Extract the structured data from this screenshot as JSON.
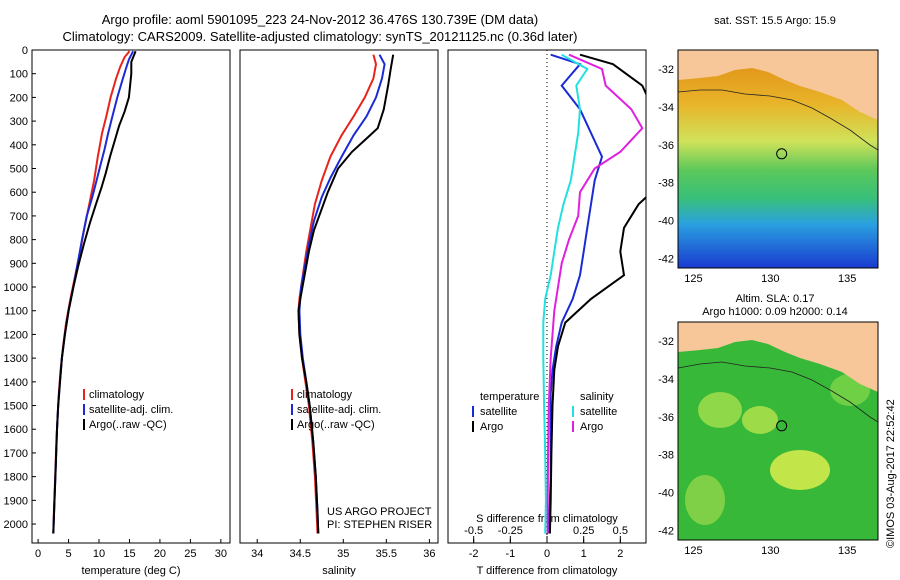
{
  "header": {
    "title_line1": "Argo profile: aoml 5901095_223 24-Nov-2012 36.476S 130.739E (DM data)",
    "title_line2": "Climatology: CARS2009. Satellite-adjusted climatology: synTS_20121125.nc (0.36d later)"
  },
  "footer": {
    "credit_line1": "US ARGO PROJECT",
    "credit_line2": "PI: STEPHEN RISER",
    "timestamp": "©IMOS 03-Aug-2017 22:52:42"
  },
  "colors": {
    "climatology": "#e8241a",
    "satellite": "#1a2bd6",
    "argo": "#000000",
    "satellite_salinity": "#22e0e0",
    "argo_salinity": "#e020e0",
    "land": "#f7c79a"
  },
  "chart_data": [
    {
      "type": "line",
      "name": "temperature-profile",
      "xlabel": "temperature (deg C)",
      "ylabel": "",
      "xlim": [
        -1,
        31.5
      ],
      "ylim": [
        2080,
        0
      ],
      "y_reversed": true,
      "xticks": [
        0,
        5,
        10,
        15,
        20,
        25,
        30
      ],
      "yticks": [
        0,
        100,
        200,
        300,
        400,
        500,
        600,
        700,
        800,
        900,
        1000,
        1100,
        1200,
        1300,
        1400,
        1500,
        1600,
        1700,
        1800,
        1900,
        2000
      ],
      "legend": {
        "position": "lower-middle",
        "entries": [
          "climatology",
          "satellite-adj. clim.",
          "Argo(..raw -QC)"
        ]
      },
      "series": [
        {
          "name": "climatology",
          "color_key": "climatology",
          "points": [
            [
              15.0,
              5
            ],
            [
              14.2,
              30
            ],
            [
              13.5,
              70
            ],
            [
              12.8,
              120
            ],
            [
              11.9,
              200
            ],
            [
              11.2,
              280
            ],
            [
              10.5,
              350
            ],
            [
              9.8,
              450
            ],
            [
              9.2,
              550
            ],
            [
              8.4,
              650
            ],
            [
              7.6,
              750
            ],
            [
              6.9,
              850
            ],
            [
              6.1,
              950
            ],
            [
              5.3,
              1050
            ],
            [
              4.6,
              1150
            ],
            [
              4.1,
              1250
            ],
            [
              3.7,
              1350
            ],
            [
              3.4,
              1450
            ],
            [
              3.2,
              1550
            ],
            [
              3.0,
              1650
            ],
            [
              2.8,
              1800
            ],
            [
              2.6,
              1950
            ],
            [
              2.5,
              2040
            ]
          ]
        },
        {
          "name": "satellite-adj. clim.",
          "color_key": "satellite",
          "points": [
            [
              15.6,
              5
            ],
            [
              14.9,
              40
            ],
            [
              14.4,
              80
            ],
            [
              13.8,
              130
            ],
            [
              13.0,
              200
            ],
            [
              12.2,
              280
            ],
            [
              11.5,
              350
            ],
            [
              10.9,
              420
            ],
            [
              10.3,
              480
            ],
            [
              9.6,
              550
            ],
            [
              8.9,
              620
            ],
            [
              8.0,
              700
            ],
            [
              7.2,
              800
            ],
            [
              6.5,
              900
            ],
            [
              5.8,
              1000
            ],
            [
              5.0,
              1100
            ],
            [
              4.4,
              1200
            ],
            [
              3.9,
              1300
            ],
            [
              3.6,
              1400
            ],
            [
              3.3,
              1500
            ],
            [
              3.1,
              1600
            ],
            [
              2.9,
              1750
            ],
            [
              2.7,
              1900
            ],
            [
              2.5,
              2040
            ]
          ]
        },
        {
          "name": "Argo(..raw -QC)",
          "color_key": "argo",
          "points": [
            [
              16.0,
              5
            ],
            [
              15.3,
              50
            ],
            [
              15.3,
              100
            ],
            [
              14.9,
              200
            ],
            [
              14.2,
              260
            ],
            [
              13.3,
              320
            ],
            [
              12.6,
              380
            ],
            [
              11.8,
              450
            ],
            [
              11.1,
              520
            ],
            [
              10.4,
              580
            ],
            [
              9.5,
              650
            ],
            [
              8.5,
              730
            ],
            [
              7.5,
              820
            ],
            [
              6.6,
              910
            ],
            [
              5.8,
              1000
            ],
            [
              5.0,
              1100
            ],
            [
              4.4,
              1200
            ],
            [
              3.9,
              1300
            ],
            [
              3.6,
              1400
            ],
            [
              3.3,
              1500
            ],
            [
              3.1,
              1600
            ],
            [
              2.9,
              1750
            ],
            [
              2.7,
              1900
            ],
            [
              2.5,
              2040
            ]
          ]
        }
      ]
    },
    {
      "type": "line",
      "name": "salinity-profile",
      "xlabel": "salinity",
      "ylabel": "",
      "xlim": [
        33.8,
        36.1
      ],
      "ylim": [
        2080,
        0
      ],
      "y_reversed": true,
      "xticks": [
        34,
        34.5,
        35,
        35.5,
        36
      ],
      "legend": {
        "position": "lower-middle",
        "entries": [
          "climatology",
          "satellite-adj. clim.",
          "Argo(..raw -QC)"
        ]
      },
      "series": [
        {
          "name": "climatology",
          "color_key": "climatology",
          "points": [
            [
              35.35,
              20
            ],
            [
              35.38,
              60
            ],
            [
              35.35,
              120
            ],
            [
              35.25,
              200
            ],
            [
              35.12,
              280
            ],
            [
              34.98,
              360
            ],
            [
              34.85,
              450
            ],
            [
              34.75,
              550
            ],
            [
              34.67,
              650
            ],
            [
              34.62,
              750
            ],
            [
              34.57,
              850
            ],
            [
              34.53,
              950
            ],
            [
              34.49,
              1050
            ],
            [
              34.48,
              1100
            ],
            [
              34.49,
              1200
            ],
            [
              34.52,
              1300
            ],
            [
              34.56,
              1400
            ],
            [
              34.6,
              1500
            ],
            [
              34.64,
              1650
            ],
            [
              34.67,
              1800
            ],
            [
              34.69,
              1950
            ],
            [
              34.7,
              2040
            ]
          ]
        },
        {
          "name": "satellite-adj. clim.",
          "color_key": "satellite",
          "points": [
            [
              35.42,
              20
            ],
            [
              35.48,
              60
            ],
            [
              35.45,
              120
            ],
            [
              35.38,
              200
            ],
            [
              35.27,
              280
            ],
            [
              35.12,
              360
            ],
            [
              34.98,
              450
            ],
            [
              34.85,
              540
            ],
            [
              34.75,
              620
            ],
            [
              34.66,
              720
            ],
            [
              34.6,
              820
            ],
            [
              34.55,
              920
            ],
            [
              34.51,
              1000
            ],
            [
              34.49,
              1100
            ],
            [
              34.5,
              1200
            ],
            [
              34.53,
              1300
            ],
            [
              34.57,
              1400
            ],
            [
              34.61,
              1500
            ],
            [
              34.65,
              1650
            ],
            [
              34.68,
              1800
            ],
            [
              34.7,
              1950
            ],
            [
              34.71,
              2040
            ]
          ]
        },
        {
          "name": "Argo(..raw -QC)",
          "color_key": "argo",
          "points": [
            [
              35.58,
              20
            ],
            [
              35.55,
              80
            ],
            [
              35.52,
              150
            ],
            [
              35.47,
              250
            ],
            [
              35.4,
              330
            ],
            [
              35.25,
              380
            ],
            [
              35.1,
              430
            ],
            [
              34.94,
              500
            ],
            [
              34.82,
              600
            ],
            [
              34.74,
              680
            ],
            [
              34.66,
              760
            ],
            [
              34.6,
              850
            ],
            [
              34.55,
              950
            ],
            [
              34.5,
              1050
            ],
            [
              34.48,
              1100
            ],
            [
              34.49,
              1200
            ],
            [
              34.52,
              1300
            ],
            [
              34.57,
              1400
            ],
            [
              34.61,
              1500
            ],
            [
              34.65,
              1650
            ],
            [
              34.68,
              1800
            ],
            [
              34.7,
              1950
            ],
            [
              34.71,
              2040
            ]
          ]
        }
      ]
    },
    {
      "type": "line",
      "name": "difference-profile",
      "xlabel": "T difference from climatology",
      "xlabel_top": "S difference from climatology",
      "ylabel": "",
      "xlim": [
        -2.7,
        2.7
      ],
      "ylim": [
        2080,
        0
      ],
      "y_reversed": true,
      "xticks_bottom": [
        -2,
        -1,
        0,
        1,
        2
      ],
      "xticks_top_labels": [
        "-0.5",
        "-0.25",
        "0",
        "0.25",
        "0.5"
      ],
      "xticks_top_positions_T": [
        -2,
        -1,
        0,
        1,
        2
      ],
      "zero_line": "dotted",
      "legend": {
        "position": "lower-middle",
        "temperature_title": "temperature",
        "salinity_title": "salinity",
        "temperature_entries": [
          "satellite",
          "Argo"
        ],
        "salinity_entries": [
          "satellite",
          "Argo"
        ]
      },
      "series": [
        {
          "name": "satellite",
          "group": "temperature",
          "color_key": "satellite",
          "points": [
            [
              0.1,
              20
            ],
            [
              0.9,
              60
            ],
            [
              0.4,
              150
            ],
            [
              0.9,
              250
            ],
            [
              1.2,
              350
            ],
            [
              1.5,
              450
            ],
            [
              1.3,
              550
            ],
            [
              1.2,
              650
            ],
            [
              1.1,
              750
            ],
            [
              1.0,
              850
            ],
            [
              0.9,
              950
            ],
            [
              0.7,
              1050
            ],
            [
              0.4,
              1150
            ],
            [
              0.25,
              1250
            ],
            [
              0.15,
              1350
            ],
            [
              0.1,
              1450
            ],
            [
              0.1,
              1600
            ],
            [
              0.1,
              1800
            ],
            [
              0.05,
              2040
            ]
          ]
        },
        {
          "name": "Argo",
          "group": "temperature",
          "color_key": "argo",
          "points": [
            [
              0.9,
              20
            ],
            [
              1.8,
              60
            ],
            [
              2.6,
              150
            ],
            [
              2.9,
              250
            ],
            [
              3.4,
              350
            ],
            [
              4.0,
              450
            ],
            [
              3.2,
              550
            ],
            [
              2.5,
              650
            ],
            [
              2.1,
              750
            ],
            [
              2.0,
              850
            ],
            [
              2.1,
              950
            ],
            [
              1.2,
              1050
            ],
            [
              0.5,
              1150
            ],
            [
              0.3,
              1250
            ],
            [
              0.2,
              1350
            ],
            [
              0.15,
              1500
            ],
            [
              0.12,
              1700
            ],
            [
              0.1,
              1900
            ],
            [
              0.08,
              2040
            ]
          ]
        },
        {
          "name": "satellite",
          "group": "salinity",
          "color_key": "satellite_salinity",
          "points": [
            [
              0.4,
              20
            ],
            [
              1.1,
              80
            ],
            [
              0.8,
              150
            ],
            [
              0.9,
              250
            ],
            [
              0.85,
              350
            ],
            [
              0.75,
              450
            ],
            [
              0.65,
              550
            ],
            [
              0.45,
              650
            ],
            [
              0.3,
              750
            ],
            [
              0.2,
              850
            ],
            [
              0.1,
              950
            ],
            [
              -0.05,
              1050
            ],
            [
              -0.1,
              1150
            ],
            [
              -0.1,
              1300
            ],
            [
              -0.08,
              1500
            ],
            [
              -0.05,
              1700
            ],
            [
              -0.03,
              1900
            ],
            [
              -0.05,
              2040
            ]
          ]
        },
        {
          "name": "Argo",
          "group": "salinity",
          "color_key": "argo_salinity",
          "points": [
            [
              0.6,
              20
            ],
            [
              1.5,
              80
            ],
            [
              1.6,
              150
            ],
            [
              2.3,
              250
            ],
            [
              2.6,
              330
            ],
            [
              2.0,
              430
            ],
            [
              1.3,
              500
            ],
            [
              0.9,
              600
            ],
            [
              0.85,
              700
            ],
            [
              0.6,
              800
            ],
            [
              0.4,
              900
            ],
            [
              0.3,
              1000
            ],
            [
              0.2,
              1100
            ],
            [
              0.15,
              1200
            ],
            [
              0.1,
              1300
            ],
            [
              0.05,
              1500
            ],
            [
              0.03,
              1700
            ],
            [
              0.02,
              1900
            ],
            [
              0.02,
              2040
            ]
          ]
        }
      ]
    },
    {
      "type": "heatmap",
      "name": "sst-map",
      "title": "sat. SST: 15.5  Argo: 15.9",
      "xlim": [
        124,
        137
      ],
      "ylim": [
        -42.5,
        -31
      ],
      "xticks": [
        125,
        130,
        135
      ],
      "yticks": [
        -32,
        -34,
        -36,
        -38,
        -40,
        -42
      ],
      "marker": [
        130.739,
        -36.476
      ]
    },
    {
      "type": "heatmap",
      "name": "sla-map",
      "title_line1": "Altim. SLA: 0.17",
      "title_line2": "Argo h1000: 0.09 h2000: 0.14",
      "xlim": [
        124,
        137
      ],
      "ylim": [
        -42.5,
        -31
      ],
      "xticks": [
        125,
        130,
        135
      ],
      "yticks": [
        -32,
        -34,
        -36,
        -38,
        -40,
        -42
      ],
      "marker": [
        130.739,
        -36.476
      ]
    }
  ]
}
